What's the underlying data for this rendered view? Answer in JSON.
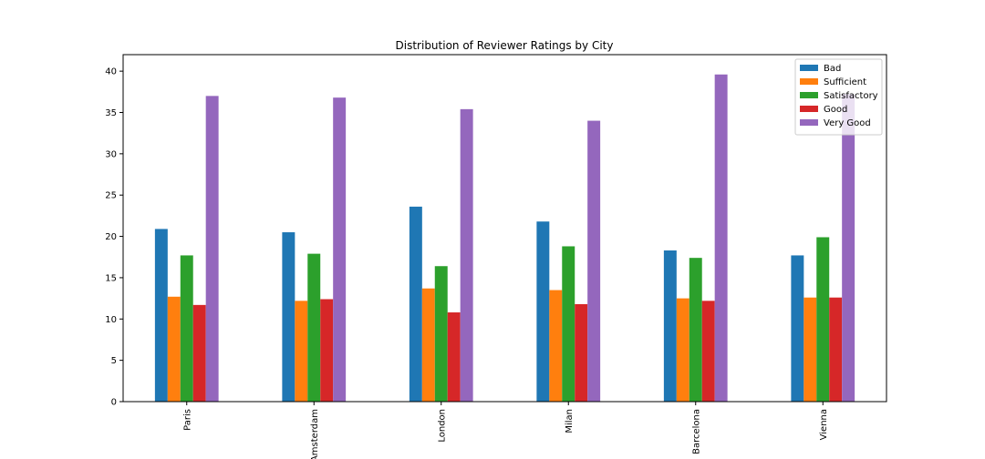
{
  "chart_data": {
    "type": "bar",
    "title": "Distribution of Reviewer Ratings by City",
    "xlabel": "",
    "ylabel": "",
    "categories": [
      "Paris",
      "Amsterdam",
      "London",
      "Milan",
      "Barcelona",
      "Vienna"
    ],
    "ylim": [
      0,
      42
    ],
    "yticks": [
      0,
      5,
      10,
      15,
      20,
      25,
      30,
      35,
      40
    ],
    "ytick_labels": [
      "0",
      "5",
      "10",
      "15",
      "20",
      "25",
      "30",
      "35",
      "40"
    ],
    "grid": false,
    "legend_position": "top-right",
    "series": [
      {
        "name": "Bad",
        "color": "#1f77b4",
        "values": [
          20.9,
          20.5,
          23.6,
          21.8,
          18.3,
          17.7
        ]
      },
      {
        "name": "Sufficient",
        "color": "#ff7f0e",
        "values": [
          12.7,
          12.2,
          13.7,
          13.5,
          12.5,
          12.6
        ]
      },
      {
        "name": "Satisfactory",
        "color": "#2ca02c",
        "values": [
          17.7,
          17.9,
          16.4,
          18.8,
          17.4,
          19.9
        ]
      },
      {
        "name": "Good",
        "color": "#d62728",
        "values": [
          11.7,
          12.4,
          10.8,
          11.8,
          12.2,
          12.6
        ]
      },
      {
        "name": "Very Good",
        "color": "#9467bd",
        "values": [
          37.0,
          36.8,
          35.4,
          34.0,
          39.6,
          37.2
        ]
      }
    ]
  }
}
